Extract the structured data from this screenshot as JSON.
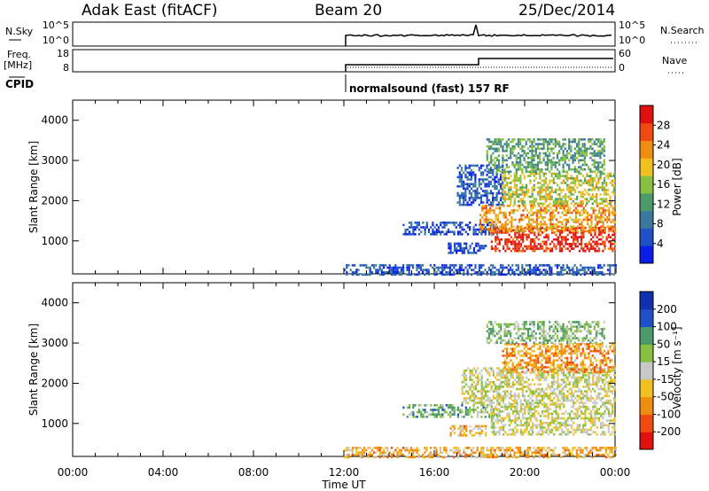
{
  "header": {
    "station": "Adak East (fitACF)",
    "beam": "Beam 20",
    "date": "25/Dec/2014"
  },
  "aux_panels": {
    "nsky_label": "N.Sky",
    "nsky_ticks": [
      "10^5",
      "10^0"
    ],
    "nsearch_label": "N.Search",
    "nsearch_ticks": [
      "10^5",
      "10^0"
    ],
    "freq_label": "Freq.",
    "freq_unit": "[MHz]",
    "freq_ticks": [
      "18",
      "8"
    ],
    "nave_label": "Nave",
    "nave_ticks": [
      "60",
      "0"
    ],
    "cpid_label": "CPID",
    "cpid_text": "normalsound (fast) 157 RF"
  },
  "colors": {
    "power": [
      "#0a1ee6",
      "#2050c8",
      "#3a78a0",
      "#4a9a6a",
      "#88c040",
      "#f0c020",
      "#f08c10",
      "#f04a10",
      "#e01010"
    ],
    "velocity": [
      "#e01010",
      "#f04a10",
      "#f08c10",
      "#f0c020",
      "#c8c8c8",
      "#88c040",
      "#4a9a6a",
      "#2050c8",
      "#1030b0"
    ]
  },
  "chart_data": [
    {
      "type": "heatmap",
      "name": "power",
      "ylabel": "Slant Range [km]",
      "xlabel": "",
      "x_ticks": [
        "00:00",
        "04:00",
        "08:00",
        "12:00",
        "16:00",
        "20:00",
        "00:00"
      ],
      "y_ticks": [
        "1000",
        "2000",
        "3000",
        "4000"
      ],
      "xlim_hours": [
        0,
        24
      ],
      "ylim_km": [
        180,
        4500
      ],
      "colorbar_label": "Power [dB]",
      "colorbar_ticks": [
        "28",
        "24",
        "20",
        "16",
        "12",
        "8",
        "4"
      ],
      "colorbar_range": [
        0,
        32
      ],
      "regions": [
        {
          "t0": 14.6,
          "t1": 18.8,
          "r0": 1180,
          "r1": 1480,
          "level": 0.15
        },
        {
          "t0": 16.6,
          "t1": 18.3,
          "r0": 720,
          "r1": 960,
          "level": 0.12
        },
        {
          "t0": 17.0,
          "t1": 19.0,
          "r0": 1900,
          "r1": 2900,
          "level": 0.2
        },
        {
          "t0": 18.5,
          "t1": 24.0,
          "r0": 750,
          "r1": 1350,
          "level": 0.9
        },
        {
          "t0": 18.0,
          "t1": 24.0,
          "r0": 1250,
          "r1": 1900,
          "level": 0.68
        },
        {
          "t0": 19.0,
          "t1": 24.0,
          "r0": 1900,
          "r1": 2700,
          "level": 0.55
        },
        {
          "t0": 18.3,
          "t1": 23.5,
          "r0": 2700,
          "r1": 3550,
          "level": 0.4
        },
        {
          "t0": 12.0,
          "t1": 24.0,
          "r0": 180,
          "r1": 420,
          "level": 0.2
        }
      ]
    },
    {
      "type": "heatmap",
      "name": "velocity",
      "ylabel": "Slant Range [km]",
      "xlabel": "Time UT",
      "x_ticks": [
        "00:00",
        "04:00",
        "08:00",
        "12:00",
        "16:00",
        "20:00",
        "00:00"
      ],
      "y_ticks": [
        "1000",
        "2000",
        "3000",
        "4000"
      ],
      "xlim_hours": [
        0,
        24
      ],
      "ylim_km": [
        180,
        4500
      ],
      "colorbar_label": "Velocity [m s⁻¹]",
      "colorbar_ticks": [
        "200",
        "100",
        "50",
        "15",
        "-15",
        "-50",
        "-100",
        "-200"
      ],
      "colorbar_range": [
        -250,
        250
      ],
      "regions": [
        {
          "t0": 14.6,
          "t1": 18.8,
          "r0": 1180,
          "r1": 1480,
          "level": 0.66
        },
        {
          "t0": 16.6,
          "t1": 18.3,
          "r0": 720,
          "r1": 960,
          "level": 0.35
        },
        {
          "t0": 18.5,
          "t1": 24.0,
          "r0": 750,
          "r1": 1500,
          "level": 0.5
        },
        {
          "t0": 17.2,
          "t1": 24.0,
          "r0": 1500,
          "r1": 2400,
          "level": 0.5
        },
        {
          "t0": 19.0,
          "t1": 24.0,
          "r0": 2300,
          "r1": 3000,
          "level": 0.3
        },
        {
          "t0": 18.3,
          "t1": 23.5,
          "r0": 3000,
          "r1": 3550,
          "level": 0.62
        },
        {
          "t0": 12.0,
          "t1": 24.0,
          "r0": 180,
          "r1": 420,
          "level": 0.35
        }
      ]
    }
  ]
}
